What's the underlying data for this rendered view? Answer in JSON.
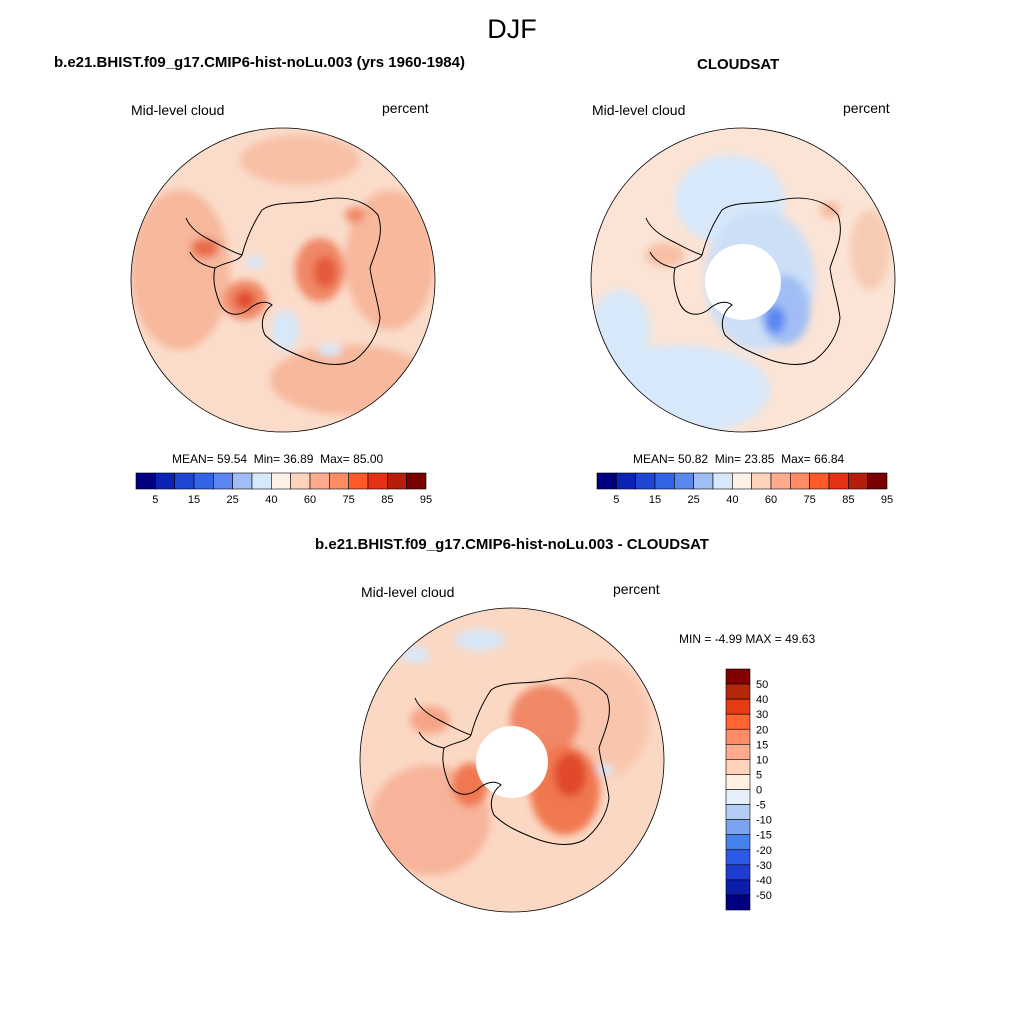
{
  "figure": {
    "season": "DJF"
  },
  "colors": {
    "abs_scale": [
      "#000080",
      "#0a23b4",
      "#1e46d2",
      "#3264e6",
      "#5a87f0",
      "#a0bef5",
      "#d7e8fa",
      "#fff1e6",
      "#ffd2b9",
      "#ffaa8c",
      "#ff8c64",
      "#ff5a28",
      "#e63214",
      "#b41e0a",
      "#780000"
    ],
    "diff_scale": [
      "#000080",
      "#0a1eaa",
      "#1e3cd2",
      "#2d5ae6",
      "#4682eb",
      "#7ba4f0",
      "#b4cdf5",
      "#e6f0fa",
      "#fff0e1",
      "#ffd2b9",
      "#ffaa8c",
      "#ff8c64",
      "#ff6432",
      "#e63c14",
      "#b4280a",
      "#820000"
    ],
    "land_outline": "#000000",
    "pole_hole": "#ffffff"
  },
  "panels": {
    "model": {
      "title": "b.e21.BHIST.f09_g17.CMIP6-hist-noLu.003 (yrs 1960-1984)",
      "variable": "Mid-level cloud",
      "units": "percent",
      "stats": {
        "mean_label": "MEAN=",
        "mean": "59.54",
        "min_label": "Min=",
        "min": "36.89",
        "max_label": "Max=",
        "max": "85.00"
      },
      "colorbar_labels": [
        "5",
        "15",
        "25",
        "40",
        "60",
        "75",
        "85",
        "95"
      ]
    },
    "obs": {
      "title": "CLOUDSAT",
      "variable": "Mid-level cloud",
      "units": "percent",
      "stats": {
        "mean_label": "MEAN=",
        "mean": "50.82",
        "min_label": "Min=",
        "min": "23.85",
        "max_label": "Max=",
        "max": "66.84"
      },
      "colorbar_labels": [
        "5",
        "15",
        "25",
        "40",
        "60",
        "75",
        "85",
        "95"
      ]
    },
    "diff": {
      "title": "b.e21.BHIST.f09_g17.CMIP6-hist-noLu.003 - CLOUDSAT",
      "variable": "Mid-level cloud",
      "units": "percent",
      "stats": {
        "min_label": "MIN =",
        "min": "-4.99",
        "max_label": "MAX =",
        "max": "49.63"
      },
      "colorbar_labels": [
        "50",
        "40",
        "30",
        "20",
        "15",
        "10",
        "5",
        "0",
        "-5",
        "-10",
        "-15",
        "-20",
        "-30",
        "-40",
        "-50"
      ]
    }
  }
}
